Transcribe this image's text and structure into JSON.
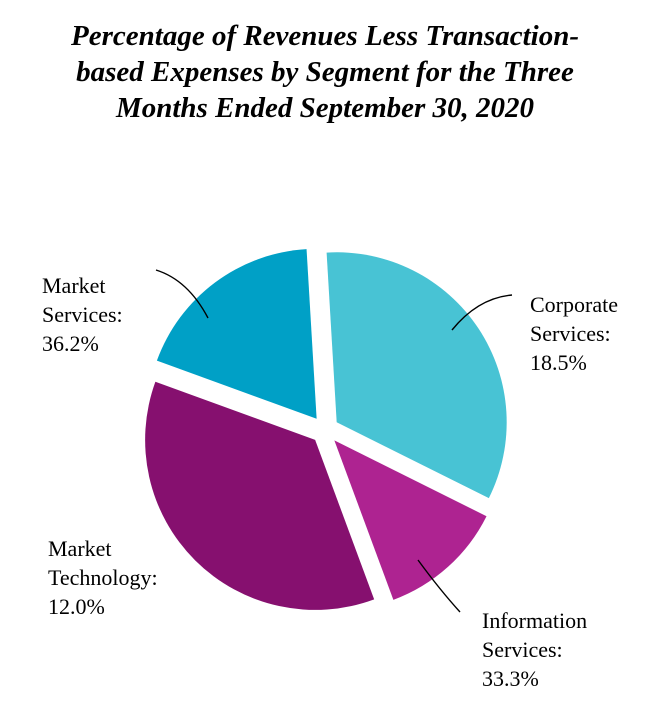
{
  "chart_data": {
    "type": "pie",
    "title": "Percentage of Revenues Less Transaction-based Expenses by Segment for the Three Months Ended September 30, 2020",
    "title_lines": [
      "Percentage of Revenues Less Transaction-",
      "based Expenses by Segment for the Three",
      "Months Ended September 30, 2020"
    ],
    "slices": [
      {
        "key": "corporate",
        "label": "Corporate Services: 18.5%",
        "lines": [
          "Corporate",
          "Services:",
          "18.5%"
        ],
        "value": 18.5,
        "color": "#00a0c6"
      },
      {
        "key": "information",
        "label": "Information Services: 33.3%",
        "lines": [
          "Information",
          "Services:",
          "33.3%"
        ],
        "value": 33.3,
        "color": "#48c3d4"
      },
      {
        "key": "technology",
        "label": "Market Technology: 12.0%",
        "lines": [
          "Market",
          "Technology:",
          "12.0%"
        ],
        "value": 12.0,
        "color": "#ae2391"
      },
      {
        "key": "market",
        "label": "Market Services: 36.2%",
        "lines": [
          "Market",
          "Services:",
          "36.2%"
        ],
        "value": 36.2,
        "color": "#86106f"
      }
    ],
    "exploded": true,
    "legend": "none"
  }
}
